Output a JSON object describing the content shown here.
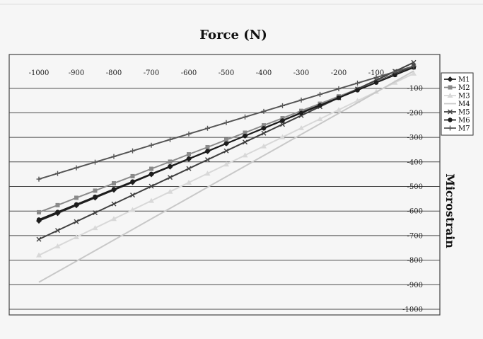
{
  "chart_data": {
    "type": "line",
    "title": "Force (N)",
    "xlabel": "",
    "ylabel": "Microstrain",
    "xlim": [
      -1000,
      0
    ],
    "ylim": [
      -1000,
      0
    ],
    "x_ticks": [
      -1000,
      -900,
      -800,
      -700,
      -600,
      -500,
      -400,
      -300,
      -200,
      -100
    ],
    "x_tick_labels": [
      "-1000",
      "-900",
      "-800",
      "-700",
      "-600",
      "-500",
      "-400",
      "-300",
      "-200",
      "-100"
    ],
    "y_ticks": [
      -100,
      -200,
      -300,
      -400,
      -500,
      -600,
      -700,
      -800,
      -900,
      -1000
    ],
    "y_tick_labels": [
      "-100",
      "-200",
      "-300",
      "-400",
      "-500",
      "-600",
      "-700",
      "-800",
      "-900",
      "-1000"
    ],
    "x_axis_position": "top",
    "y_axis_position": "right",
    "grid": "horizontal",
    "legend": "right",
    "x": [
      -1000,
      -950,
      -900,
      -850,
      -800,
      -750,
      -700,
      -650,
      -600,
      -550,
      -500,
      -450,
      -400,
      -350,
      -300,
      -250,
      -200,
      -150,
      -100,
      -50,
      0
    ],
    "series": [
      {
        "name": "M1",
        "color": "#222222",
        "marker": "diamond",
        "values": [
          -640,
          -609,
          -577,
          -546,
          -514,
          -483,
          -451,
          -420,
          -388,
          -357,
          -325,
          -294,
          -262,
          -231,
          -199,
          -168,
          -136,
          -105,
          -73,
          -42,
          -10
        ]
      },
      {
        "name": "M2",
        "color": "#8a8a8a",
        "marker": "square",
        "values": [
          -605,
          -576,
          -546,
          -517,
          -487,
          -458,
          -428,
          -399,
          -369,
          -340,
          -310,
          -281,
          -251,
          -222,
          -192,
          -163,
          -133,
          -104,
          -74,
          -45,
          -15
        ]
      },
      {
        "name": "M3",
        "color": "#d8d8d8",
        "marker": "triangle",
        "values": [
          -780,
          -743,
          -706,
          -669,
          -632,
          -595,
          -558,
          -521,
          -484,
          -447,
          -410,
          -373,
          -336,
          -299,
          -262,
          -225,
          -188,
          -151,
          -114,
          -77,
          -40
        ]
      },
      {
        "name": "M4",
        "color": "#c8c8c8",
        "marker": "none",
        "values": [
          -890,
          -847,
          -804,
          -761,
          -718,
          -675,
          -632,
          -589,
          -546,
          -503,
          -460,
          -417,
          -374,
          -331,
          -288,
          -245,
          -202,
          -159,
          -116,
          -73,
          -30
        ]
      },
      {
        "name": "M5",
        "color": "#404040",
        "marker": "x",
        "values": [
          -715,
          -679,
          -643,
          -607,
          -571,
          -535,
          -499,
          -463,
          -427,
          -391,
          -355,
          -319,
          -283,
          -247,
          -211,
          -175,
          -139,
          -103,
          -67,
          -31,
          5
        ]
      },
      {
        "name": "M6",
        "color": "#1c1c1c",
        "marker": "circle",
        "values": [
          -635,
          -604,
          -573,
          -542,
          -511,
          -480,
          -449,
          -418,
          -387,
          -356,
          -325,
          -294,
          -263,
          -232,
          -201,
          -170,
          -139,
          -108,
          -77,
          -46,
          -15
        ]
      },
      {
        "name": "M7",
        "color": "#555555",
        "marker": "plus",
        "values": [
          -470,
          -447,
          -424,
          -401,
          -378,
          -355,
          -332,
          -309,
          -286,
          -263,
          -240,
          -217,
          -194,
          -171,
          -148,
          -125,
          -102,
          -79,
          -56,
          -33,
          -10
        ]
      }
    ]
  }
}
